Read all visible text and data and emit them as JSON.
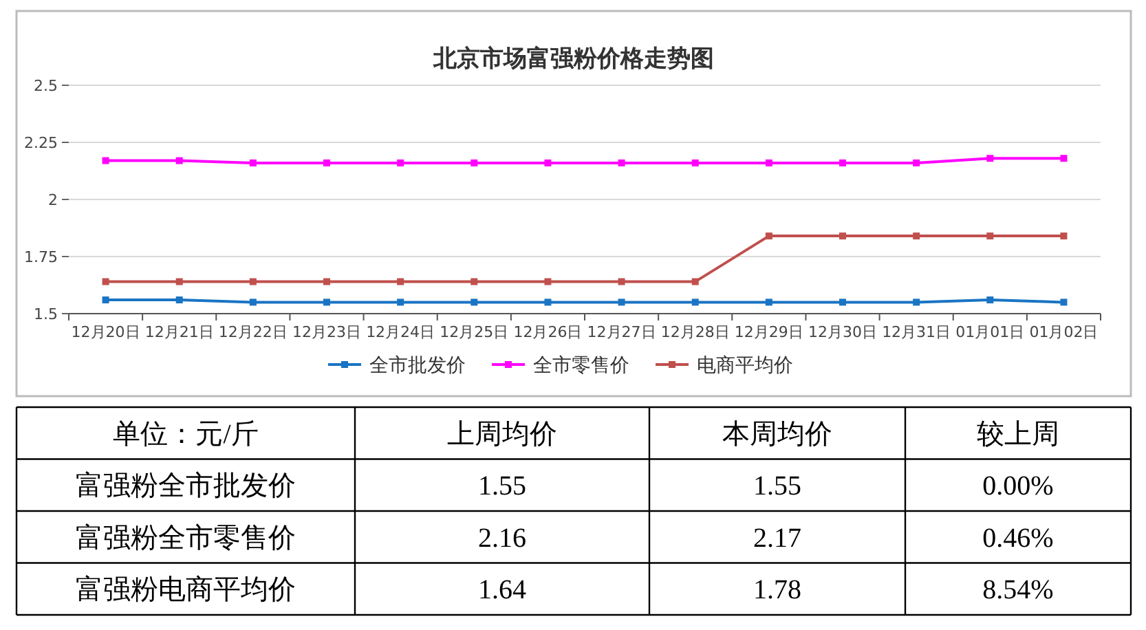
{
  "chart_data": [
    {
      "type": "line",
      "title": "北京市场富强粉价格走势图",
      "categories": [
        "12月20日",
        "12月21日",
        "12月22日",
        "12月23日",
        "12月24日",
        "12月25日",
        "12月26日",
        "12月27日",
        "12月28日",
        "12月29日",
        "12月30日",
        "12月31日",
        "01月01日",
        "01月02日"
      ],
      "series": [
        {
          "name": "全市批发价",
          "color": "#1a74c4",
          "values": [
            1.56,
            1.56,
            1.55,
            1.55,
            1.55,
            1.55,
            1.55,
            1.55,
            1.55,
            1.55,
            1.55,
            1.55,
            1.56,
            1.55
          ]
        },
        {
          "name": "全市零售价",
          "color": "#ff00ff",
          "values": [
            2.17,
            2.17,
            2.16,
            2.16,
            2.16,
            2.16,
            2.16,
            2.16,
            2.16,
            2.16,
            2.16,
            2.16,
            2.18,
            2.18
          ]
        },
        {
          "name": "电商平均价",
          "color": "#c0504d",
          "values": [
            1.64,
            1.64,
            1.64,
            1.64,
            1.64,
            1.64,
            1.64,
            1.64,
            1.64,
            1.84,
            1.84,
            1.84,
            1.84,
            1.84
          ]
        }
      ],
      "ylim": [
        1.5,
        2.5
      ],
      "yticks": [
        1.5,
        1.75,
        2,
        2.25,
        2.5
      ],
      "grid": "y",
      "legend": "bottom",
      "marker": "square",
      "line_style": "solid"
    },
    {
      "type": "other",
      "categories": [
        "单位：元/斤",
        "上周均价",
        "本周均价",
        "较上周"
      ],
      "y_categories": [
        "富强粉全市批发价",
        "富强粉全市零售价",
        "富强粉电商平均价"
      ],
      "cell_labels": [
        [
          "1.55",
          "1.55",
          "0.00%"
        ],
        [
          "2.16",
          "2.17",
          "0.46%"
        ],
        [
          "1.64",
          "1.78",
          "8.54%"
        ]
      ]
    }
  ]
}
